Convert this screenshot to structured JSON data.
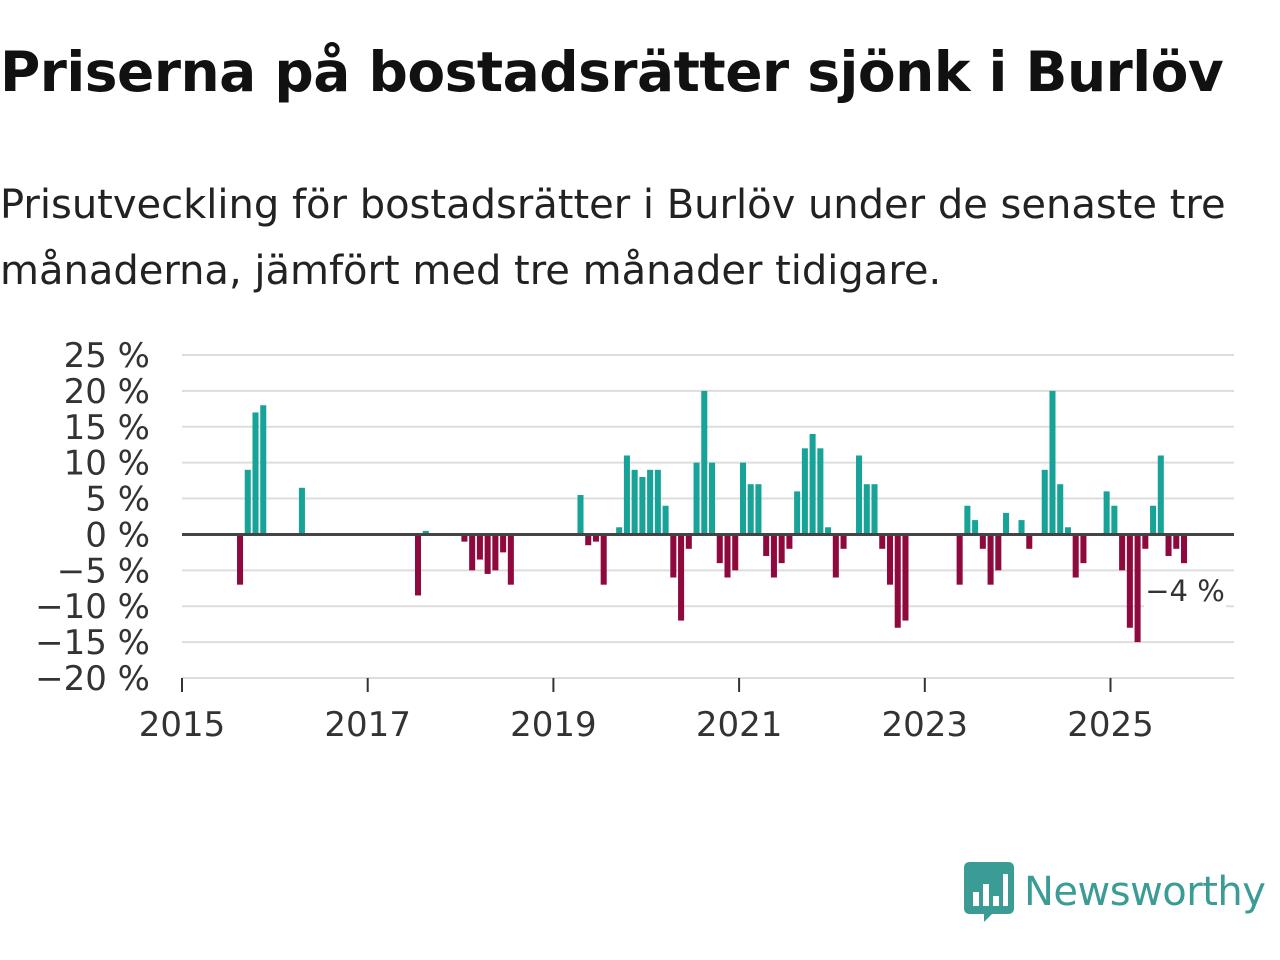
{
  "title": "Priserna på bostadsrätter sjönk i Burlöv",
  "subtitle": "Prisutveckling för bostadsrätter i Burlöv under de senaste tre månaderna, jämfört med tre månader tidigare.",
  "colors": {
    "positive": "#17a398",
    "negative": "#8e0a3e",
    "grid": "#dddddd",
    "zero": "#444444"
  },
  "brand": {
    "name": "Newsworthy",
    "color": "#3a9c95",
    "icon": "newsworthy-chart-bubble-icon"
  },
  "chart_data": {
    "type": "bar",
    "title": "Priserna på bostadsrätter sjönk i Burlöv",
    "xlabel": "",
    "ylabel": "",
    "ylim": [
      -20,
      25
    ],
    "xlim": [
      2015.0,
      2026.33
    ],
    "y_ticks": [
      {
        "value": 25,
        "label": "25 %"
      },
      {
        "value": 20,
        "label": "20 %"
      },
      {
        "value": 15,
        "label": "15 %"
      },
      {
        "value": 10,
        "label": "10 %"
      },
      {
        "value": 5,
        "label": "5 %"
      },
      {
        "value": 0,
        "label": "0 %"
      },
      {
        "value": -5,
        "label": "−5 %"
      },
      {
        "value": -10,
        "label": "−10 %"
      },
      {
        "value": -15,
        "label": "−15 %"
      },
      {
        "value": -20,
        "label": "−20 %"
      }
    ],
    "x_ticks": [
      {
        "value": 2015,
        "label": "2015"
      },
      {
        "value": 2017,
        "label": "2017"
      },
      {
        "value": 2019,
        "label": "2019"
      },
      {
        "value": 2021,
        "label": "2021"
      },
      {
        "value": 2023,
        "label": "2023"
      },
      {
        "value": 2025,
        "label": "2025"
      }
    ],
    "grid": true,
    "annotation": {
      "x": "2025-10",
      "label": "−4 %"
    },
    "points": [
      {
        "x": "2015-08",
        "value": -7
      },
      {
        "x": "2015-09",
        "value": 9
      },
      {
        "x": "2015-10",
        "value": 17
      },
      {
        "x": "2015-11",
        "value": 18
      },
      {
        "x": "2016-04",
        "value": 6.5
      },
      {
        "x": "2017-07",
        "value": -8.5
      },
      {
        "x": "2017-08",
        "value": 0.5
      },
      {
        "x": "2018-01",
        "value": -1
      },
      {
        "x": "2018-02",
        "value": -5
      },
      {
        "x": "2018-03",
        "value": -3.5
      },
      {
        "x": "2018-04",
        "value": -5.5
      },
      {
        "x": "2018-05",
        "value": -5
      },
      {
        "x": "2018-06",
        "value": -2.5
      },
      {
        "x": "2018-07",
        "value": -7
      },
      {
        "x": "2019-04",
        "value": 5.5
      },
      {
        "x": "2019-05",
        "value": -1.5
      },
      {
        "x": "2019-06",
        "value": -1
      },
      {
        "x": "2019-07",
        "value": -7
      },
      {
        "x": "2019-09",
        "value": 1
      },
      {
        "x": "2019-10",
        "value": 11
      },
      {
        "x": "2019-11",
        "value": 9
      },
      {
        "x": "2019-12",
        "value": 8
      },
      {
        "x": "2020-01",
        "value": 9
      },
      {
        "x": "2020-02",
        "value": 9
      },
      {
        "x": "2020-03",
        "value": 4
      },
      {
        "x": "2020-04",
        "value": -6
      },
      {
        "x": "2020-05",
        "value": -12
      },
      {
        "x": "2020-06",
        "value": -2
      },
      {
        "x": "2020-07",
        "value": 10
      },
      {
        "x": "2020-08",
        "value": 20
      },
      {
        "x": "2020-09",
        "value": 10
      },
      {
        "x": "2020-10",
        "value": -4
      },
      {
        "x": "2020-11",
        "value": -6
      },
      {
        "x": "2020-12",
        "value": -5
      },
      {
        "x": "2021-01",
        "value": 10
      },
      {
        "x": "2021-02",
        "value": 7
      },
      {
        "x": "2021-03",
        "value": 7
      },
      {
        "x": "2021-04",
        "value": -3
      },
      {
        "x": "2021-05",
        "value": -6
      },
      {
        "x": "2021-06",
        "value": -4
      },
      {
        "x": "2021-07",
        "value": -2
      },
      {
        "x": "2021-08",
        "value": 6
      },
      {
        "x": "2021-09",
        "value": 12
      },
      {
        "x": "2021-10",
        "value": 14
      },
      {
        "x": "2021-11",
        "value": 12
      },
      {
        "x": "2021-12",
        "value": 1
      },
      {
        "x": "2022-01",
        "value": -6
      },
      {
        "x": "2022-02",
        "value": -2
      },
      {
        "x": "2022-04",
        "value": 11
      },
      {
        "x": "2022-05",
        "value": 7
      },
      {
        "x": "2022-06",
        "value": 7
      },
      {
        "x": "2022-07",
        "value": -2
      },
      {
        "x": "2022-08",
        "value": -7
      },
      {
        "x": "2022-09",
        "value": -13
      },
      {
        "x": "2022-10",
        "value": -12
      },
      {
        "x": "2023-05",
        "value": -7
      },
      {
        "x": "2023-06",
        "value": 4
      },
      {
        "x": "2023-07",
        "value": 2
      },
      {
        "x": "2023-08",
        "value": -2
      },
      {
        "x": "2023-09",
        "value": -7
      },
      {
        "x": "2023-10",
        "value": -5
      },
      {
        "x": "2023-11",
        "value": 3
      },
      {
        "x": "2024-01",
        "value": 2
      },
      {
        "x": "2024-02",
        "value": -2
      },
      {
        "x": "2024-04",
        "value": 9
      },
      {
        "x": "2024-05",
        "value": 20
      },
      {
        "x": "2024-06",
        "value": 7
      },
      {
        "x": "2024-07",
        "value": 1
      },
      {
        "x": "2024-08",
        "value": -6
      },
      {
        "x": "2024-09",
        "value": -4
      },
      {
        "x": "2024-12",
        "value": 6
      },
      {
        "x": "2025-01",
        "value": 4
      },
      {
        "x": "2025-02",
        "value": -5
      },
      {
        "x": "2025-03",
        "value": -13
      },
      {
        "x": "2025-04",
        "value": -15
      },
      {
        "x": "2025-05",
        "value": -2
      },
      {
        "x": "2025-06",
        "value": 4
      },
      {
        "x": "2025-07",
        "value": 11
      },
      {
        "x": "2025-08",
        "value": -3
      },
      {
        "x": "2025-09",
        "value": -2
      },
      {
        "x": "2025-10",
        "value": -4
      }
    ]
  }
}
